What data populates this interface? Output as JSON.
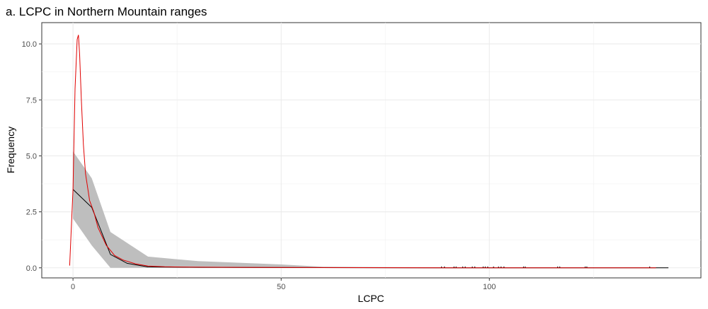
{
  "chart_data": {
    "type": "line",
    "title": "a. LCPC in Northern Mountain ranges",
    "xlabel": "LCPC",
    "ylabel": "Frequency",
    "xlim": [
      -7.5,
      150.8
    ],
    "ylim": [
      -0.45,
      10.95
    ],
    "x_ticks": [
      0,
      50,
      100
    ],
    "x_tick_labels": [
      "0",
      "50",
      "100"
    ],
    "y_ticks": [
      0,
      2.5,
      5,
      7.5,
      10
    ],
    "y_tick_labels": [
      "0.0",
      "2.5",
      "5.0",
      "7.5",
      "10.0"
    ],
    "grid": true,
    "legend": "none",
    "colors": {
      "ribbon": "#bebebe",
      "mean_line": "#000000",
      "fit_line": "#e00000",
      "rug": "#000000"
    },
    "series": [
      {
        "role": "ribbon",
        "x": [
          0,
          4.5,
          9,
          18,
          30,
          50,
          60,
          85,
          143
        ],
        "lower": [
          2.2,
          1.0,
          0.0,
          0.0,
          0.0,
          0.0,
          0.0,
          0.0,
          0.0
        ],
        "upper": [
          5.2,
          4.0,
          1.6,
          0.5,
          0.3,
          0.15,
          0.05,
          0.02,
          0.02
        ]
      },
      {
        "role": "mean",
        "x": [
          0,
          4.5,
          9,
          13,
          18,
          30,
          50,
          85,
          143
        ],
        "y": [
          3.5,
          2.7,
          0.6,
          0.2,
          0.04,
          0.02,
          0.01,
          0.0,
          0.0
        ]
      },
      {
        "role": "fit",
        "x": [
          -0.8,
          0,
          0.5,
          1.0,
          1.3,
          1.6,
          2.0,
          2.5,
          3.0,
          4.0,
          5.0,
          6.0,
          8.0,
          10.0,
          12.0,
          15.0,
          18.0,
          22.0,
          28.0,
          40.0,
          60.0,
          100.0,
          140.0
        ],
        "y": [
          0.1,
          3.5,
          8.0,
          10.2,
          10.4,
          9.5,
          7.5,
          5.5,
          4.2,
          3.0,
          2.5,
          1.8,
          1.0,
          0.55,
          0.35,
          0.18,
          0.08,
          0.05,
          0.03,
          0.02,
          0.01,
          0.0,
          0.0
        ]
      }
    ],
    "rug_x": [
      88.5,
      89.2,
      91.5,
      92.0,
      93.6,
      94.2,
      95.9,
      96.5,
      98.5,
      99.0,
      99.6,
      101.0,
      102.2,
      102.8,
      103.5,
      108.2,
      108.6,
      116.4,
      116.9,
      123.0,
      123.4,
      138.5
    ]
  }
}
